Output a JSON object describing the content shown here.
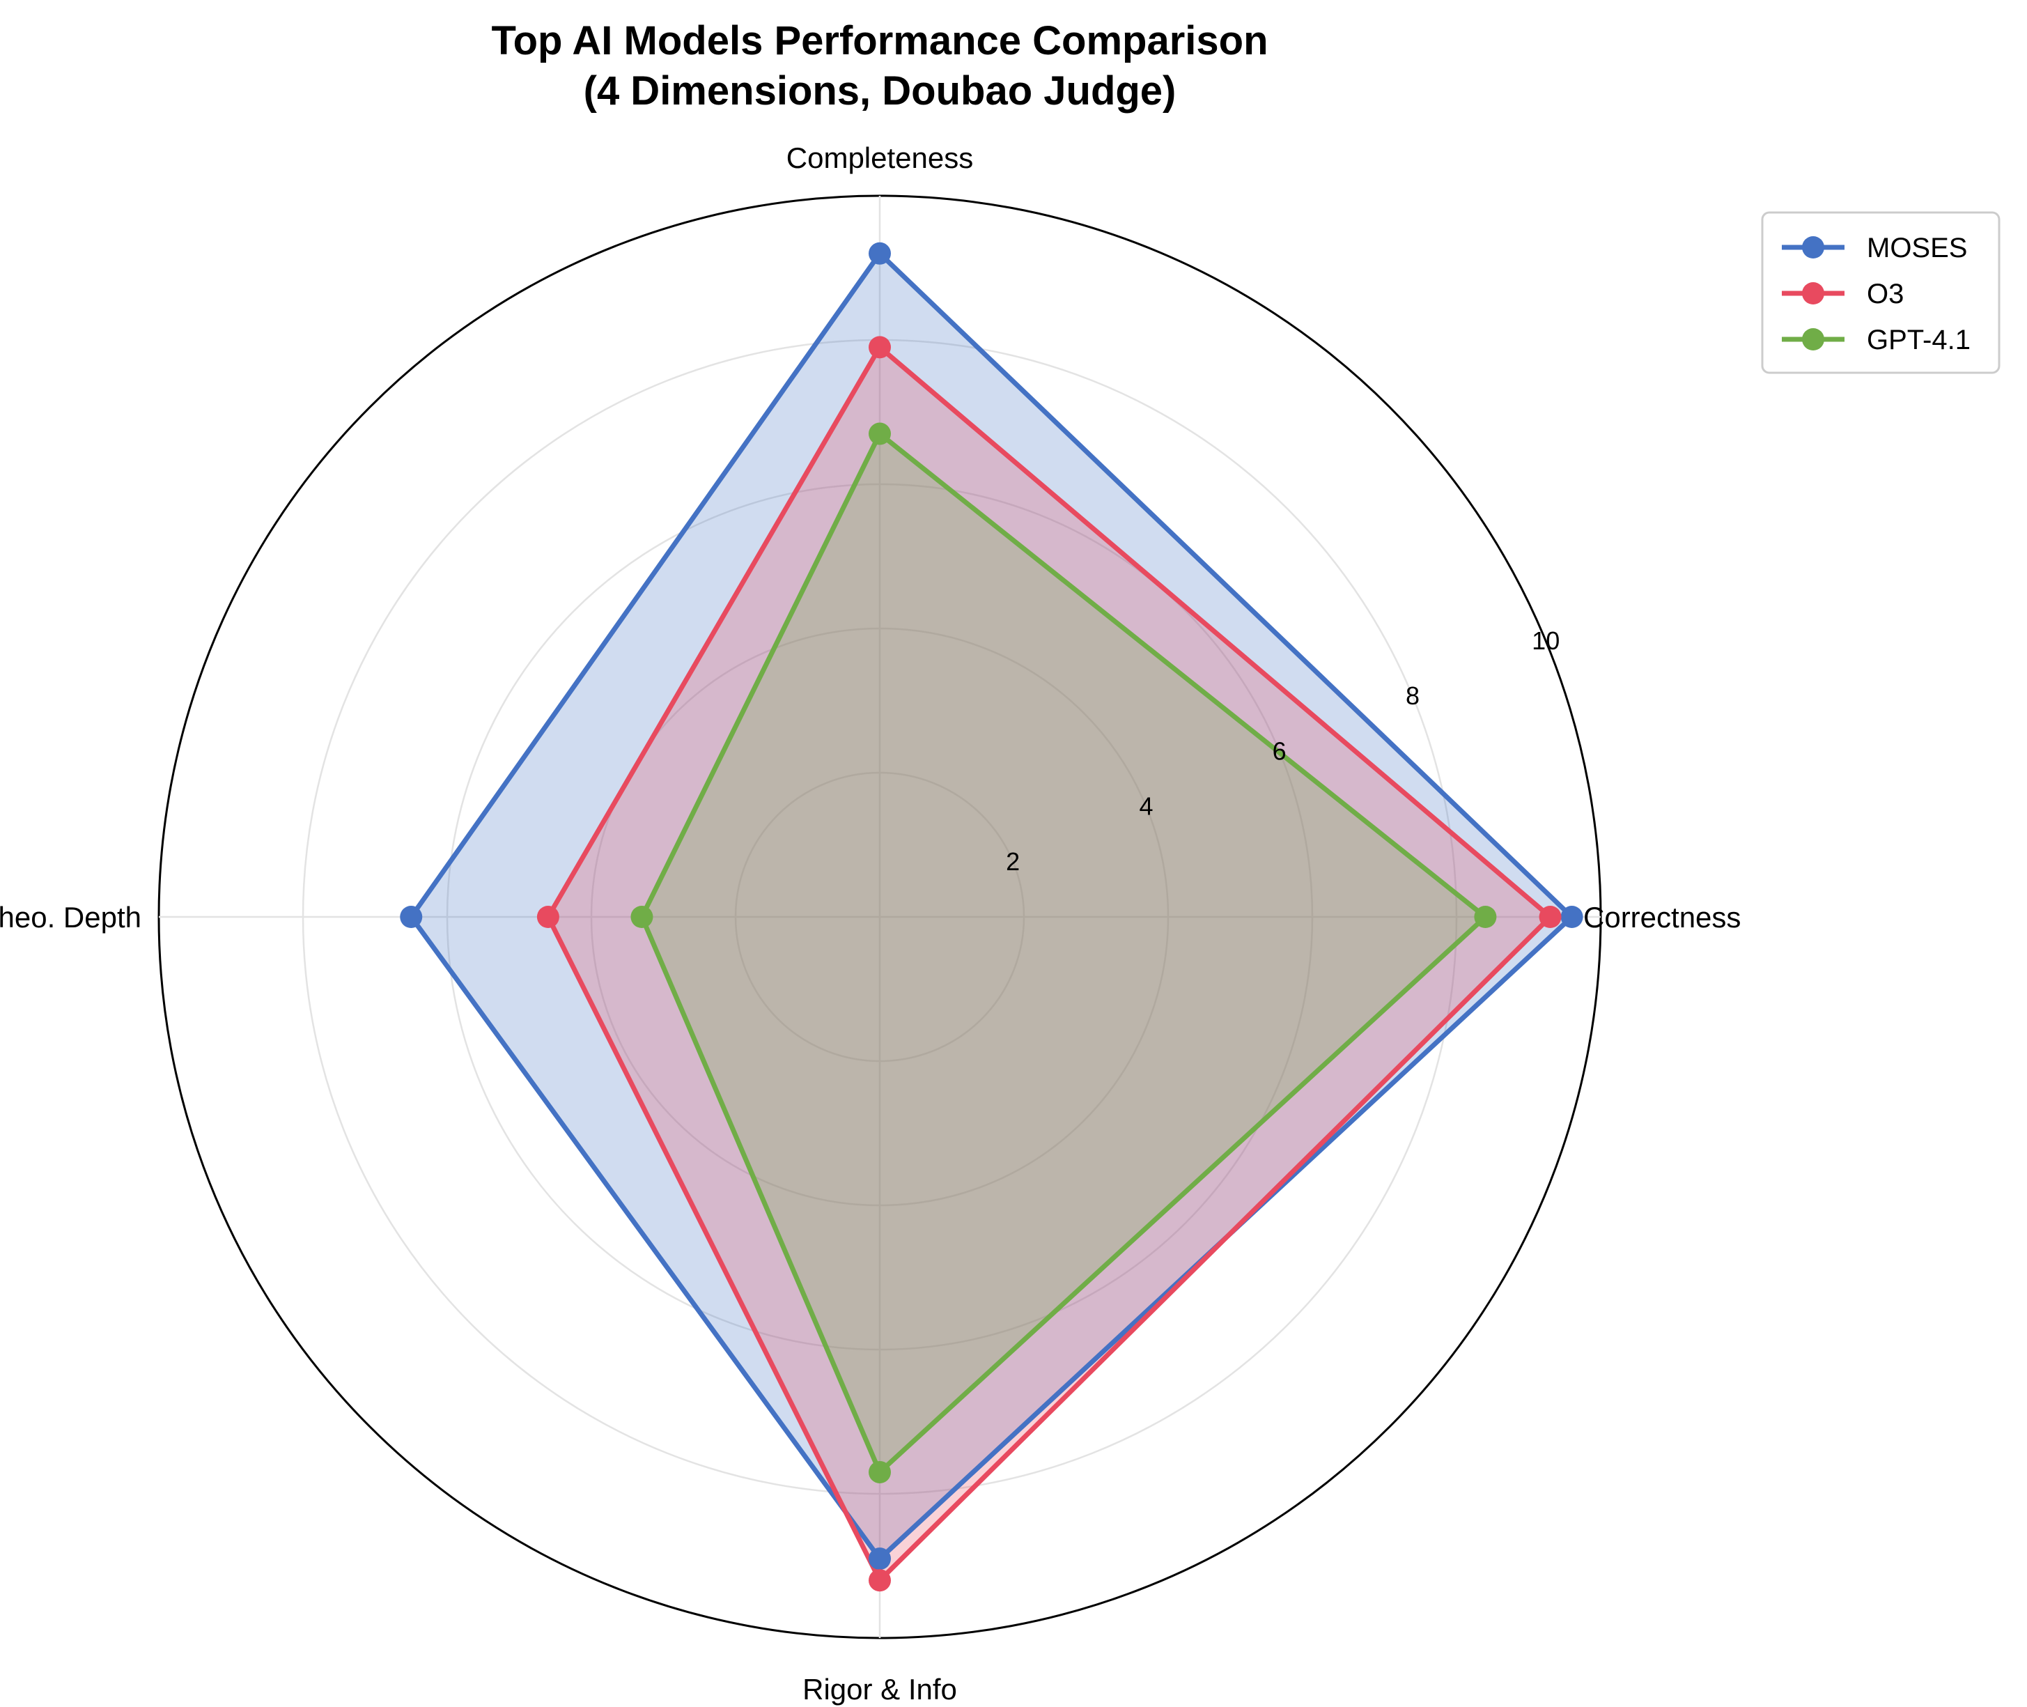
{
  "chart_data": {
    "type": "radar",
    "title": "Top AI Models Performance Comparison",
    "subtitle": "(4 Dimensions, Doubao Judge)",
    "axes": [
      "Correctness",
      "Completeness",
      "Theo. Depth",
      "Rigor & Info"
    ],
    "rlim": [
      0,
      10
    ],
    "rticks": [
      2,
      4,
      6,
      8,
      10
    ],
    "grid": true,
    "legend_position": "top-right",
    "series": [
      {
        "name": "MOSES",
        "color": "#4472C4",
        "values": [
          9.6,
          9.2,
          6.5,
          8.9
        ]
      },
      {
        "name": "O3",
        "color": "#E84A5F",
        "values": [
          9.3,
          7.9,
          4.6,
          9.2
        ]
      },
      {
        "name": "GPT-4.1",
        "color": "#70AD47",
        "values": [
          8.4,
          6.7,
          3.3,
          7.7
        ]
      }
    ]
  }
}
